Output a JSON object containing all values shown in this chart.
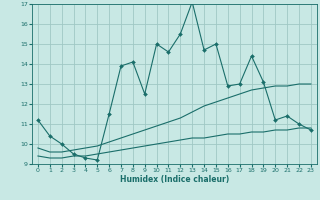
{
  "xlabel": "Humidex (Indice chaleur)",
  "ylabel": "",
  "xlim": [
    -0.5,
    23.5
  ],
  "ylim": [
    9,
    17
  ],
  "yticks": [
    9,
    10,
    11,
    12,
    13,
    14,
    15,
    16,
    17
  ],
  "xticks": [
    0,
    1,
    2,
    3,
    4,
    5,
    6,
    7,
    8,
    9,
    10,
    11,
    12,
    13,
    14,
    15,
    16,
    17,
    18,
    19,
    20,
    21,
    22,
    23
  ],
  "bg_color": "#c8e8e4",
  "grid_color": "#a0c8c4",
  "line_color": "#1a6e6a",
  "line1_x": [
    0,
    1,
    2,
    3,
    4,
    5,
    6,
    7,
    8,
    9,
    10,
    11,
    12,
    13,
    14,
    15,
    16,
    17,
    18,
    19,
    20,
    21,
    22,
    23
  ],
  "line1_y": [
    11.2,
    10.4,
    10.0,
    9.5,
    9.3,
    9.2,
    11.5,
    13.9,
    14.1,
    12.5,
    15.0,
    14.6,
    15.5,
    17.1,
    14.7,
    15.0,
    12.9,
    13.0,
    14.4,
    13.1,
    11.2,
    11.4,
    11.0,
    10.7
  ],
  "line2_x": [
    0,
    1,
    2,
    3,
    4,
    5,
    6,
    7,
    8,
    9,
    10,
    11,
    12,
    13,
    14,
    15,
    16,
    17,
    18,
    19,
    20,
    21,
    22,
    23
  ],
  "line2_y": [
    9.8,
    9.6,
    9.6,
    9.7,
    9.8,
    9.9,
    10.1,
    10.3,
    10.5,
    10.7,
    10.9,
    11.1,
    11.3,
    11.6,
    11.9,
    12.1,
    12.3,
    12.5,
    12.7,
    12.8,
    12.9,
    12.9,
    13.0,
    13.0
  ],
  "line3_x": [
    0,
    1,
    2,
    3,
    4,
    5,
    6,
    7,
    8,
    9,
    10,
    11,
    12,
    13,
    14,
    15,
    16,
    17,
    18,
    19,
    20,
    21,
    22,
    23
  ],
  "line3_y": [
    9.4,
    9.3,
    9.3,
    9.4,
    9.4,
    9.5,
    9.6,
    9.7,
    9.8,
    9.9,
    10.0,
    10.1,
    10.2,
    10.3,
    10.3,
    10.4,
    10.5,
    10.5,
    10.6,
    10.6,
    10.7,
    10.7,
    10.8,
    10.8
  ]
}
